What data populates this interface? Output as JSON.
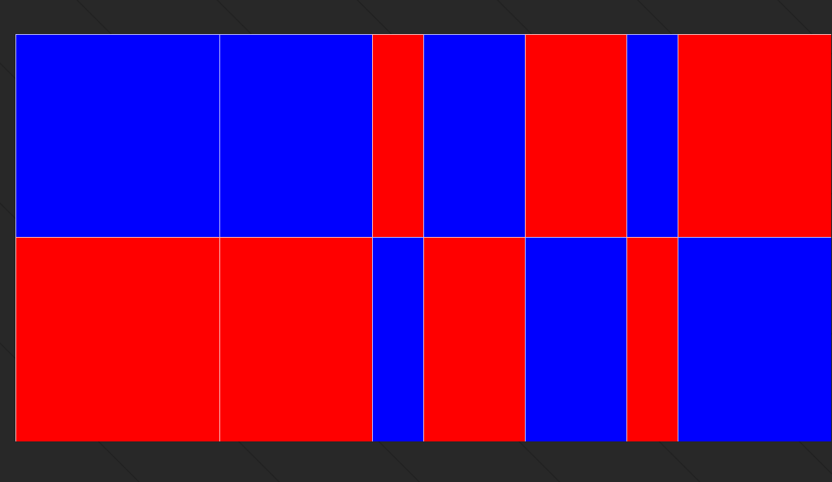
{
  "colors": {
    "blue": "#0000ff",
    "red": "#ff0000",
    "background": "#282828",
    "cell_border": "#ffffff"
  },
  "grid": {
    "rows": [
      [
        "blue",
        "blue",
        "red",
        "blue",
        "red",
        "blue",
        "red"
      ],
      [
        "red",
        "red",
        "blue",
        "red",
        "blue",
        "red",
        "blue"
      ]
    ]
  }
}
